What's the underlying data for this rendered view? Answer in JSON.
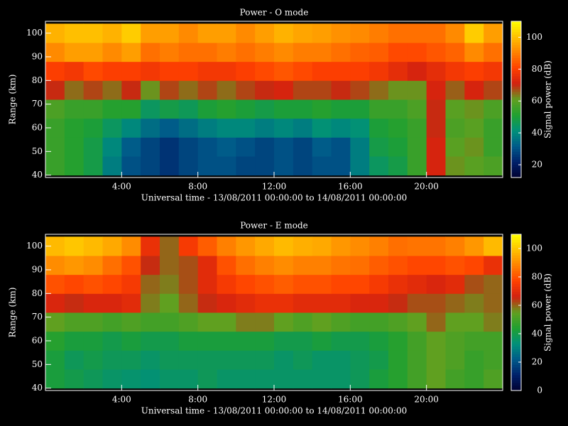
{
  "chart_data": [
    {
      "type": "heatmap",
      "title": "Power - O mode",
      "xlabel": "Universal time - 13/08/2011 00:00:00 to 14/08/2011 00:00:00",
      "ylabel": "Range (km)",
      "colorbar_label": "Signal power (dB)",
      "x_bins": [
        0,
        1,
        2,
        3,
        4,
        5,
        6,
        7,
        8,
        9,
        10,
        11,
        12,
        13,
        14,
        15,
        16,
        17,
        18,
        19,
        20,
        21,
        22,
        23,
        24
      ],
      "y_bins": [
        40,
        48,
        56,
        64,
        72,
        80,
        88,
        96,
        104
      ],
      "xlim": [
        0,
        24
      ],
      "ylim": [
        39,
        105
      ],
      "xticks": [
        {
          "value": 4,
          "label": "4:00"
        },
        {
          "value": 8,
          "label": "8:00"
        },
        {
          "value": 12,
          "label": "12:00"
        },
        {
          "value": 16,
          "label": "16:00"
        },
        {
          "value": 20,
          "label": "20:00"
        }
      ],
      "yticks": [
        40,
        50,
        60,
        70,
        80,
        90,
        100
      ],
      "zlim": [
        12,
        110
      ],
      "zticks": [
        20,
        40,
        60,
        80,
        100
      ],
      "colormap": [
        "#000030",
        "#00206a",
        "#005a8a",
        "#00907a",
        "#20a030",
        "#60a020",
        "#d02010",
        "#ff4000",
        "#ff8000",
        "#ffc000",
        "#ffff00"
      ],
      "values": [
        [
          55,
          52,
          48,
          38,
          30,
          28,
          25,
          28,
          30,
          30,
          28,
          28,
          30,
          28,
          30,
          30,
          38,
          45,
          48,
          55,
          72,
          62,
          60,
          58
        ],
        [
          55,
          52,
          48,
          40,
          32,
          28,
          25,
          28,
          30,
          32,
          30,
          28,
          30,
          28,
          32,
          30,
          38,
          48,
          50,
          55,
          72,
          60,
          62,
          55
        ],
        [
          55,
          52,
          50,
          45,
          40,
          35,
          32,
          35,
          38,
          40,
          40,
          38,
          40,
          38,
          42,
          40,
          42,
          50,
          52,
          55,
          70,
          58,
          60,
          55
        ],
        [
          58,
          55,
          55,
          52,
          52,
          45,
          48,
          46,
          50,
          52,
          50,
          48,
          50,
          50,
          52,
          50,
          50,
          55,
          55,
          58,
          70,
          60,
          62,
          58
        ],
        [
          70,
          65,
          68,
          65,
          70,
          62,
          68,
          65,
          68,
          65,
          68,
          70,
          72,
          68,
          68,
          70,
          68,
          65,
          62,
          62,
          72,
          66,
          72,
          68
        ],
        [
          80,
          78,
          82,
          80,
          80,
          78,
          80,
          80,
          78,
          78,
          80,
          82,
          84,
          82,
          80,
          80,
          80,
          78,
          75,
          72,
          75,
          78,
          80,
          78
        ],
        [
          92,
          95,
          95,
          92,
          95,
          88,
          90,
          88,
          88,
          90,
          88,
          90,
          92,
          90,
          90,
          88,
          86,
          85,
          82,
          82,
          84,
          86,
          92,
          88
        ],
        [
          98,
          100,
          100,
          98,
          102,
          95,
          95,
          92,
          95,
          95,
          92,
          95,
          98,
          96,
          95,
          93,
          92,
          90,
          88,
          88,
          88,
          92,
          102,
          95
        ]
      ]
    },
    {
      "type": "heatmap",
      "title": "Power - E mode",
      "xlabel": "Universal time - 13/08/2011 00:00:00 to 14/08/2011 00:00:00",
      "ylabel": "Range (km)",
      "colorbar_label": "Signal power (dB)",
      "x_bins": [
        0,
        1,
        2,
        3,
        4,
        5,
        6,
        7,
        8,
        9,
        10,
        11,
        12,
        13,
        14,
        15,
        16,
        17,
        18,
        19,
        20,
        21,
        22,
        23,
        24
      ],
      "y_bins": [
        40,
        48,
        56,
        64,
        72,
        80,
        88,
        96,
        104
      ],
      "xlim": [
        0,
        24
      ],
      "ylim": [
        39,
        105
      ],
      "xticks": [
        {
          "value": 4,
          "label": "4:00"
        },
        {
          "value": 8,
          "label": "8:00"
        },
        {
          "value": 12,
          "label": "12:00"
        },
        {
          "value": 16,
          "label": "16:00"
        },
        {
          "value": 20,
          "label": "20:00"
        }
      ],
      "yticks": [
        40,
        50,
        60,
        70,
        80,
        90,
        100
      ],
      "zlim": [
        0,
        110
      ],
      "zticks": [
        0,
        20,
        40,
        60,
        80,
        100
      ],
      "colormap": [
        "#000030",
        "#00206a",
        "#005a8a",
        "#00907a",
        "#20a030",
        "#60a020",
        "#d02010",
        "#ff4000",
        "#ff8000",
        "#ffc000",
        "#ffff00"
      ],
      "values": [
        [
          42,
          40,
          38,
          36,
          35,
          34,
          36,
          36,
          38,
          36,
          36,
          36,
          36,
          36,
          36,
          36,
          38,
          42,
          45,
          50,
          55,
          50,
          48,
          52
        ],
        [
          42,
          38,
          40,
          38,
          38,
          36,
          38,
          38,
          38,
          38,
          38,
          38,
          36,
          38,
          36,
          36,
          38,
          40,
          45,
          50,
          55,
          52,
          48,
          50
        ],
        [
          45,
          42,
          42,
          40,
          42,
          40,
          40,
          42,
          42,
          42,
          42,
          42,
          40,
          40,
          42,
          40,
          40,
          42,
          45,
          50,
          55,
          52,
          50,
          50
        ],
        [
          55,
          52,
          52,
          50,
          52,
          50,
          50,
          52,
          55,
          55,
          58,
          58,
          55,
          52,
          55,
          52,
          50,
          50,
          52,
          55,
          60,
          55,
          55,
          58
        ],
        [
          68,
          65,
          68,
          68,
          70,
          58,
          55,
          60,
          65,
          68,
          70,
          72,
          72,
          70,
          70,
          70,
          68,
          68,
          65,
          62,
          62,
          60,
          58,
          60
        ],
        [
          80,
          78,
          80,
          78,
          75,
          60,
          58,
          62,
          70,
          75,
          78,
          80,
          82,
          80,
          80,
          78,
          78,
          75,
          72,
          70,
          68,
          70,
          62,
          60
        ],
        [
          90,
          92,
          90,
          85,
          80,
          65,
          60,
          62,
          70,
          80,
          85,
          88,
          90,
          88,
          88,
          86,
          85,
          82,
          80,
          78,
          78,
          80,
          78,
          72
        ],
        [
          98,
          100,
          98,
          95,
          90,
          72,
          60,
          75,
          82,
          88,
          92,
          95,
          98,
          96,
          95,
          92,
          90,
          88,
          85,
          86,
          86,
          88,
          92,
          98
        ]
      ]
    }
  ]
}
